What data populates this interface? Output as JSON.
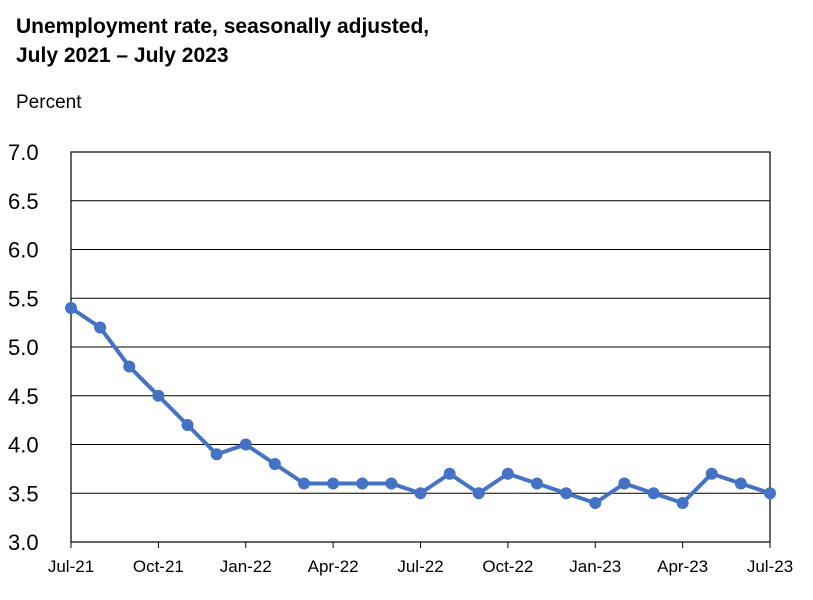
{
  "chart_data": {
    "type": "line",
    "title_line1": "Unemployment rate, seasonally adjusted,",
    "title_line2": "July 2021 – July 2023",
    "ylabel": "Percent",
    "xlabel": "",
    "ylim": [
      3.0,
      7.0
    ],
    "y_ticks": [
      "7.0",
      "6.5",
      "6.0",
      "5.5",
      "5.0",
      "4.5",
      "4.0",
      "3.5",
      "3.0"
    ],
    "y_tick_values": [
      7.0,
      6.5,
      6.0,
      5.5,
      5.0,
      4.5,
      4.0,
      3.5,
      3.0
    ],
    "grid": true,
    "x_tick_labels": [
      "Jul-21",
      "Oct-21",
      "Jan-22",
      "Apr-22",
      "Jul-22",
      "Oct-22",
      "Jan-23",
      "Apr-23",
      "Jul-23"
    ],
    "x_tick_months": [
      "2021-07",
      "2021-10",
      "2022-01",
      "2022-04",
      "2022-07",
      "2022-10",
      "2023-01",
      "2023-04",
      "2023-07"
    ],
    "x": [
      "2021-07",
      "2021-08",
      "2021-09",
      "2021-10",
      "2021-11",
      "2021-12",
      "2022-01",
      "2022-02",
      "2022-03",
      "2022-04",
      "2022-05",
      "2022-06",
      "2022-07",
      "2022-08",
      "2022-09",
      "2022-10",
      "2022-11",
      "2022-12",
      "2023-01",
      "2023-02",
      "2023-03",
      "2023-04",
      "2023-05",
      "2023-06",
      "2023-07"
    ],
    "series": [
      {
        "values": [
          5.4,
          5.2,
          4.8,
          4.5,
          4.2,
          3.9,
          4.0,
          3.8,
          3.6,
          3.6,
          3.6,
          3.6,
          3.5,
          3.7,
          3.5,
          3.7,
          3.6,
          3.5,
          3.4,
          3.6,
          3.5,
          3.4,
          3.7,
          3.6,
          3.5
        ],
        "color": "#4472C4"
      }
    ]
  }
}
